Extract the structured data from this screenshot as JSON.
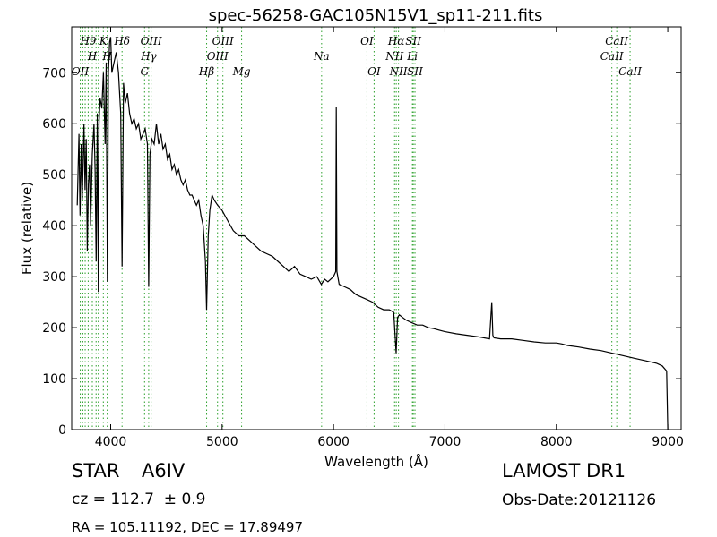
{
  "chart_data": {
    "type": "line",
    "title": "spec-56258-GAC105N15V1_sp11-211.fits",
    "xlabel": "Wavelength (Å)",
    "ylabel": "Flux (relative)",
    "xlim": [
      3650,
      9120
    ],
    "ylim": [
      0,
      790
    ],
    "xticks": [
      4000,
      5000,
      6000,
      7000,
      8000,
      9000
    ],
    "yticks": [
      0,
      100,
      200,
      300,
      400,
      500,
      600,
      700
    ],
    "grid": false,
    "line_color": "#000000",
    "marker_color": "#2ca02c",
    "series": [
      {
        "x": [
          3700,
          3715,
          3725,
          3735,
          3745,
          3760,
          3770,
          3780,
          3790,
          3800,
          3810,
          3820,
          3835,
          3850,
          3860,
          3870,
          3880,
          3889,
          3895,
          3905,
          3920,
          3935,
          3950,
          3960,
          3970,
          3980,
          3990,
          4000,
          4010,
          4030,
          4050,
          4070,
          4090,
          4102,
          4115,
          4130,
          4150,
          4170,
          4190,
          4210,
          4230,
          4250,
          4270,
          4290,
          4310,
          4330,
          4341,
          4352,
          4370,
          4390,
          4410,
          4430,
          4450,
          4470,
          4490,
          4510,
          4530,
          4550,
          4570,
          4590,
          4610,
          4630,
          4650,
          4670,
          4690,
          4710,
          4730,
          4750,
          4770,
          4790,
          4810,
          4830,
          4850,
          4861,
          4875,
          4890,
          4910,
          4930,
          4960,
          5000,
          5050,
          5100,
          5150,
          5200,
          5250,
          5300,
          5350,
          5400,
          5450,
          5500,
          5550,
          5600,
          5650,
          5700,
          5750,
          5800,
          5850,
          5890,
          5920,
          5950,
          6000,
          6020,
          6025,
          6030,
          6050,
          6100,
          6150,
          6200,
          6250,
          6300,
          6350,
          6400,
          6450,
          6500,
          6540,
          6562,
          6575,
          6590,
          6620,
          6650,
          6700,
          6750,
          6800,
          6850,
          6900,
          6950,
          7000,
          7100,
          7200,
          7300,
          7400,
          7420,
          7430,
          7440,
          7500,
          7600,
          7700,
          7800,
          7900,
          8000,
          8050,
          8100,
          8200,
          8300,
          8400,
          8500,
          8600,
          8700,
          8800,
          8900,
          8950,
          8990,
          9000
        ],
        "y": [
          440,
          580,
          420,
          560,
          450,
          600,
          470,
          570,
          350,
          480,
          520,
          400,
          540,
          600,
          510,
          330,
          620,
          270,
          600,
          650,
          630,
          700,
          560,
          720,
          290,
          700,
          760,
          770,
          700,
          720,
          740,
          700,
          620,
          320,
          680,
          640,
          660,
          620,
          600,
          610,
          590,
          600,
          570,
          580,
          590,
          560,
          280,
          540,
          570,
          560,
          600,
          560,
          580,
          550,
          560,
          530,
          540,
          510,
          520,
          500,
          510,
          490,
          480,
          490,
          470,
          460,
          460,
          450,
          440,
          450,
          420,
          400,
          330,
          235,
          380,
          430,
          460,
          450,
          440,
          430,
          410,
          390,
          380,
          380,
          370,
          360,
          350,
          345,
          340,
          330,
          320,
          310,
          320,
          305,
          300,
          295,
          300,
          285,
          295,
          290,
          300,
          310,
          632,
          310,
          285,
          280,
          275,
          265,
          260,
          255,
          250,
          240,
          235,
          235,
          230,
          150,
          220,
          225,
          220,
          215,
          210,
          205,
          205,
          200,
          198,
          195,
          192,
          188,
          185,
          182,
          178,
          250,
          185,
          180,
          178,
          178,
          175,
          172,
          170,
          170,
          168,
          165,
          162,
          158,
          155,
          150,
          145,
          140,
          135,
          130,
          125,
          115,
          0
        ]
      }
    ],
    "lines": [
      {
        "x": 3727,
        "labels": [
          {
            "text": "OII",
            "row": 2
          }
        ]
      },
      {
        "x": 3750,
        "labels": []
      },
      {
        "x": 3771,
        "labels": []
      },
      {
        "x": 3798,
        "labels": [
          {
            "text": "H9",
            "row": 0
          }
        ]
      },
      {
        "x": 3835,
        "labels": [
          {
            "text": "H",
            "row": 1
          }
        ]
      },
      {
        "x": 3869,
        "labels": [
          {
            "text": "",
            "row": 2
          }
        ]
      },
      {
        "x": 3889,
        "labels": [
          {
            "text": "",
            "row": 1
          }
        ]
      },
      {
        "x": 3934,
        "labels": [
          {
            "text": "K",
            "row": 0
          }
        ]
      },
      {
        "x": 3969,
        "labels": [
          {
            "text": "H",
            "row": 1
          }
        ]
      },
      {
        "x": 4102,
        "labels": [
          {
            "text": "Hδ",
            "row": 0
          },
          {
            "text": "",
            "row": 1
          }
        ]
      },
      {
        "x": 4304,
        "labels": [
          {
            "text": "G",
            "row": 2
          }
        ]
      },
      {
        "x": 4341,
        "labels": [
          {
            "text": "Hγ",
            "row": 1
          }
        ]
      },
      {
        "x": 4363,
        "labels": [
          {
            "text": "OIII",
            "row": 0
          }
        ]
      },
      {
        "x": 4861,
        "labels": [
          {
            "text": "Hβ",
            "row": 2
          }
        ]
      },
      {
        "x": 4959,
        "labels": [
          {
            "text": "OIII",
            "row": 1
          }
        ]
      },
      {
        "x": 5007,
        "labels": [
          {
            "text": "OIII",
            "row": 0
          }
        ]
      },
      {
        "x": 5175,
        "labels": [
          {
            "text": "Mg",
            "row": 2
          }
        ]
      },
      {
        "x": 5893,
        "labels": [
          {
            "text": "Na",
            "row": 1
          }
        ]
      },
      {
        "x": 6300,
        "labels": [
          {
            "text": "OI",
            "row": 0
          }
        ]
      },
      {
        "x": 6364,
        "labels": [
          {
            "text": "OI",
            "row": 2
          }
        ]
      },
      {
        "x": 6548,
        "labels": [
          {
            "text": "NII",
            "row": 1
          }
        ]
      },
      {
        "x": 6563,
        "labels": [
          {
            "text": "Hα",
            "row": 0
          }
        ]
      },
      {
        "x": 6583,
        "labels": [
          {
            "text": "NII",
            "row": 2
          }
        ]
      },
      {
        "x": 6708,
        "labels": [
          {
            "text": "Li",
            "row": 1
          }
        ]
      },
      {
        "x": 6716,
        "labels": [
          {
            "text": "SII",
            "row": 0
          }
        ]
      },
      {
        "x": 6731,
        "labels": [
          {
            "text": "SII",
            "row": 2
          }
        ]
      },
      {
        "x": 8498,
        "labels": [
          {
            "text": "CaII",
            "row": 1
          }
        ]
      },
      {
        "x": 8542,
        "labels": [
          {
            "text": "CaII",
            "row": 0
          }
        ]
      },
      {
        "x": 8662,
        "labels": [
          {
            "text": "CaII",
            "row": 2
          }
        ]
      }
    ]
  },
  "info": {
    "object_class": "STAR",
    "subclass": "A6IV",
    "survey": "LAMOST DR1",
    "redshift": "cz = 112.7  ± 0.9",
    "obs_date": "Obs-Date:20121126",
    "coords": "RA = 105.11192, DEC = 17.89497"
  }
}
